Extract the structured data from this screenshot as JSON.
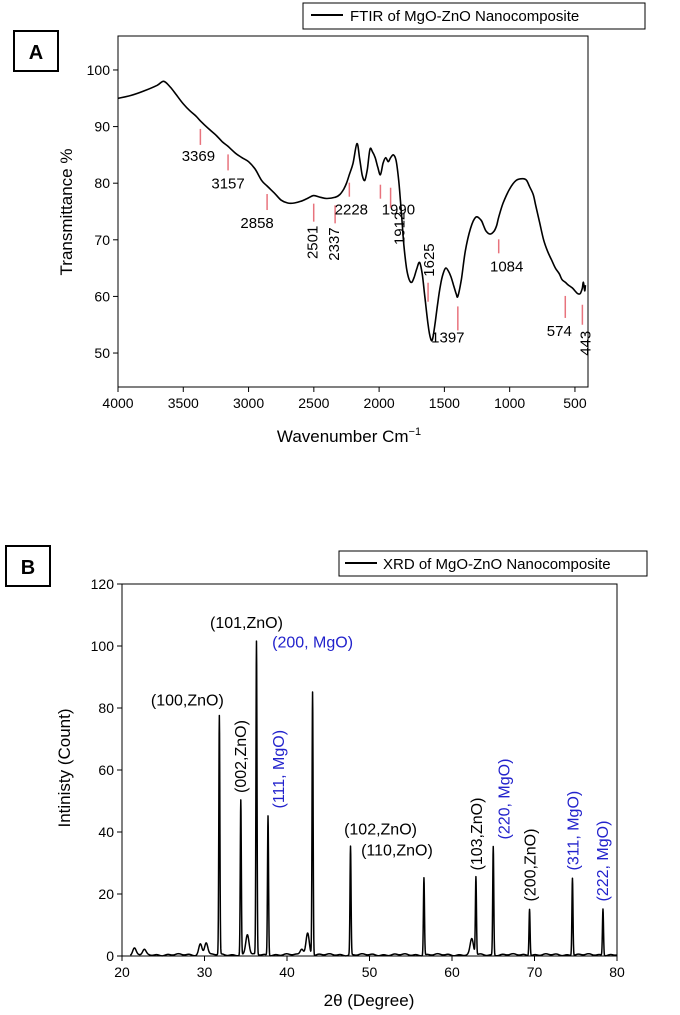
{
  "chart_data": [
    {
      "panel_label": "A",
      "type": "line",
      "legend": "FTIR of MgO-ZnO Nanocomposite",
      "legend_position": "top-right",
      "xlabel": "Wavenumber Cm",
      "xlabel_sup": "−1",
      "ylabel": "Transmittance %",
      "xlim": [
        4000,
        400
      ],
      "ylim": [
        44,
        106
      ],
      "xticks": [
        4000,
        3500,
        3000,
        2500,
        2000,
        1500,
        1000,
        500
      ],
      "yticks": [
        50,
        60,
        70,
        80,
        90,
        100
      ],
      "series": [
        {
          "name": "FTIR of MgO-ZnO Nanocomposite",
          "x": [
            4000,
            3900,
            3800,
            3700,
            3650,
            3600,
            3550,
            3500,
            3450,
            3400,
            3369,
            3300,
            3250,
            3200,
            3157,
            3100,
            3050,
            3000,
            2950,
            2900,
            2858,
            2800,
            2750,
            2700,
            2650,
            2600,
            2550,
            2501,
            2450,
            2400,
            2337,
            2300,
            2270,
            2250,
            2228,
            2200,
            2170,
            2150,
            2130,
            2110,
            2090,
            2070,
            2050,
            2030,
            2010,
            1990,
            1970,
            1950,
            1930,
            1912,
            1890,
            1870,
            1850,
            1830,
            1810,
            1790,
            1770,
            1750,
            1730,
            1710,
            1690,
            1670,
            1650,
            1625,
            1605,
            1590,
            1570,
            1550,
            1530,
            1510,
            1490,
            1470,
            1450,
            1430,
            1410,
            1397,
            1370,
            1340,
            1300,
            1260,
            1220,
            1200,
            1180,
            1150,
            1120,
            1100,
            1084,
            1050,
            1000,
            950,
            900,
            870,
            850,
            820,
            800,
            770,
            740,
            710,
            680,
            650,
            620,
            600,
            574,
            550,
            520,
            500,
            480,
            460,
            450,
            443,
            435,
            425,
            420
          ],
          "values": [
            95.0,
            95.5,
            96.3,
            97.3,
            98.0,
            97.0,
            95.5,
            94.0,
            92.8,
            91.8,
            91.0,
            89.5,
            88.5,
            87.3,
            86.5,
            85.3,
            84.5,
            83.8,
            82.5,
            80.5,
            79.5,
            78.2,
            77.0,
            76.5,
            76.5,
            76.8,
            77.3,
            77.8,
            77.5,
            77.3,
            77.5,
            78.0,
            79.0,
            80.0,
            81.5,
            83.5,
            87.0,
            84.5,
            81.5,
            80.5,
            82.5,
            86.0,
            85.5,
            84.5,
            82.8,
            81.5,
            83.5,
            84.5,
            83.8,
            84.5,
            85.0,
            84.0,
            80.5,
            75.0,
            69.0,
            65.0,
            63.0,
            62.5,
            63.5,
            65.0,
            66.0,
            64.0,
            60.0,
            55.0,
            52.5,
            52.5,
            55.5,
            59.0,
            62.0,
            64.0,
            65.0,
            64.5,
            63.5,
            62.0,
            60.5,
            60.0,
            63.0,
            68.0,
            72.0,
            74.0,
            73.5,
            72.5,
            71.5,
            71.0,
            71.5,
            72.5,
            74.0,
            76.5,
            79.0,
            80.5,
            80.8,
            80.5,
            79.5,
            78.0,
            76.0,
            73.0,
            70.0,
            68.0,
            66.5,
            65.0,
            64.0,
            63.0,
            62.5,
            62.0,
            61.5,
            61.0,
            60.5,
            60.5,
            61.0,
            61.5,
            62.5,
            61.0,
            62.0
          ]
        }
      ],
      "annotations": [
        {
          "label": "3369",
          "x": 3369,
          "y": 91.0
        },
        {
          "label": "3157",
          "x": 3157,
          "y": 86.5
        },
        {
          "label": "2858",
          "x": 2858,
          "y": 79.5
        },
        {
          "label": "2501",
          "x": 2501,
          "y": 77.8
        },
        {
          "label": "2337",
          "x": 2337,
          "y": 77.5
        },
        {
          "label": "2228",
          "x": 2228,
          "y": 81.5
        },
        {
          "label": "1990",
          "x": 1990,
          "y": 81.5
        },
        {
          "label": "1912",
          "x": 1912,
          "y": 84.5
        },
        {
          "label": "1625",
          "x": 1625,
          "y": 55.0
        },
        {
          "label": "1397",
          "x": 1397,
          "y": 60.0
        },
        {
          "label": "1084",
          "x": 1084,
          "y": 71.5
        },
        {
          "label": "574",
          "x": 574,
          "y": 61.5
        },
        {
          "label": "443",
          "x": 443,
          "y": 61.0
        }
      ]
    },
    {
      "panel_label": "B",
      "type": "line",
      "legend": "XRD of MgO-ZnO Nanocomposite",
      "legend_position": "top-right",
      "xlabel": "2θ (Degree)",
      "ylabel": "Intinisty (Count)",
      "xlim": [
        20,
        80
      ],
      "ylim": [
        0,
        120
      ],
      "xticks": [
        20,
        30,
        40,
        50,
        60,
        70,
        80
      ],
      "yticks": [
        0,
        20,
        40,
        60,
        80,
        100,
        120
      ],
      "peaks": [
        {
          "x": 31.8,
          "y": 77,
          "label": "(100,ZnO)",
          "phase": "ZnO"
        },
        {
          "x": 34.4,
          "y": 50,
          "label": "(002,ZnO)",
          "phase": "ZnO"
        },
        {
          "x": 36.3,
          "y": 101,
          "label": "(101,ZnO)",
          "phase": "ZnO"
        },
        {
          "x": 37.7,
          "y": 45,
          "label": "(111, MgO)",
          "phase": "MgO"
        },
        {
          "x": 43.1,
          "y": 85,
          "label": "(200, MgO)",
          "phase": "MgO"
        },
        {
          "x": 47.7,
          "y": 35,
          "label": "(102,ZnO)",
          "phase": "ZnO"
        },
        {
          "x": 56.6,
          "y": 25,
          "label": "(110,ZnO)",
          "phase": "ZnO"
        },
        {
          "x": 62.9,
          "y": 25,
          "label": "(103,ZnO)",
          "phase": "ZnO"
        },
        {
          "x": 65.0,
          "y": 35,
          "label": "(220, MgO)",
          "phase": "MgO"
        },
        {
          "x": 69.4,
          "y": 15,
          "label": "(200,ZnO)",
          "phase": "ZnO"
        },
        {
          "x": 74.6,
          "y": 25,
          "label": "(311, MgO)",
          "phase": "MgO"
        },
        {
          "x": 78.3,
          "y": 15,
          "label": "(222, MgO)",
          "phase": "MgO"
        }
      ],
      "minor_peaks": [
        {
          "x": 21.5,
          "y": 2
        },
        {
          "x": 22.7,
          "y": 1.5
        },
        {
          "x": 29.5,
          "y": 3.5
        },
        {
          "x": 30.2,
          "y": 4
        },
        {
          "x": 35.2,
          "y": 6.5
        },
        {
          "x": 41.8,
          "y": 2
        },
        {
          "x": 42.5,
          "y": 7
        },
        {
          "x": 62.4,
          "y": 5
        }
      ],
      "colors": {
        "ZnO": "#000000",
        "MgO": "#2222cc"
      }
    }
  ]
}
